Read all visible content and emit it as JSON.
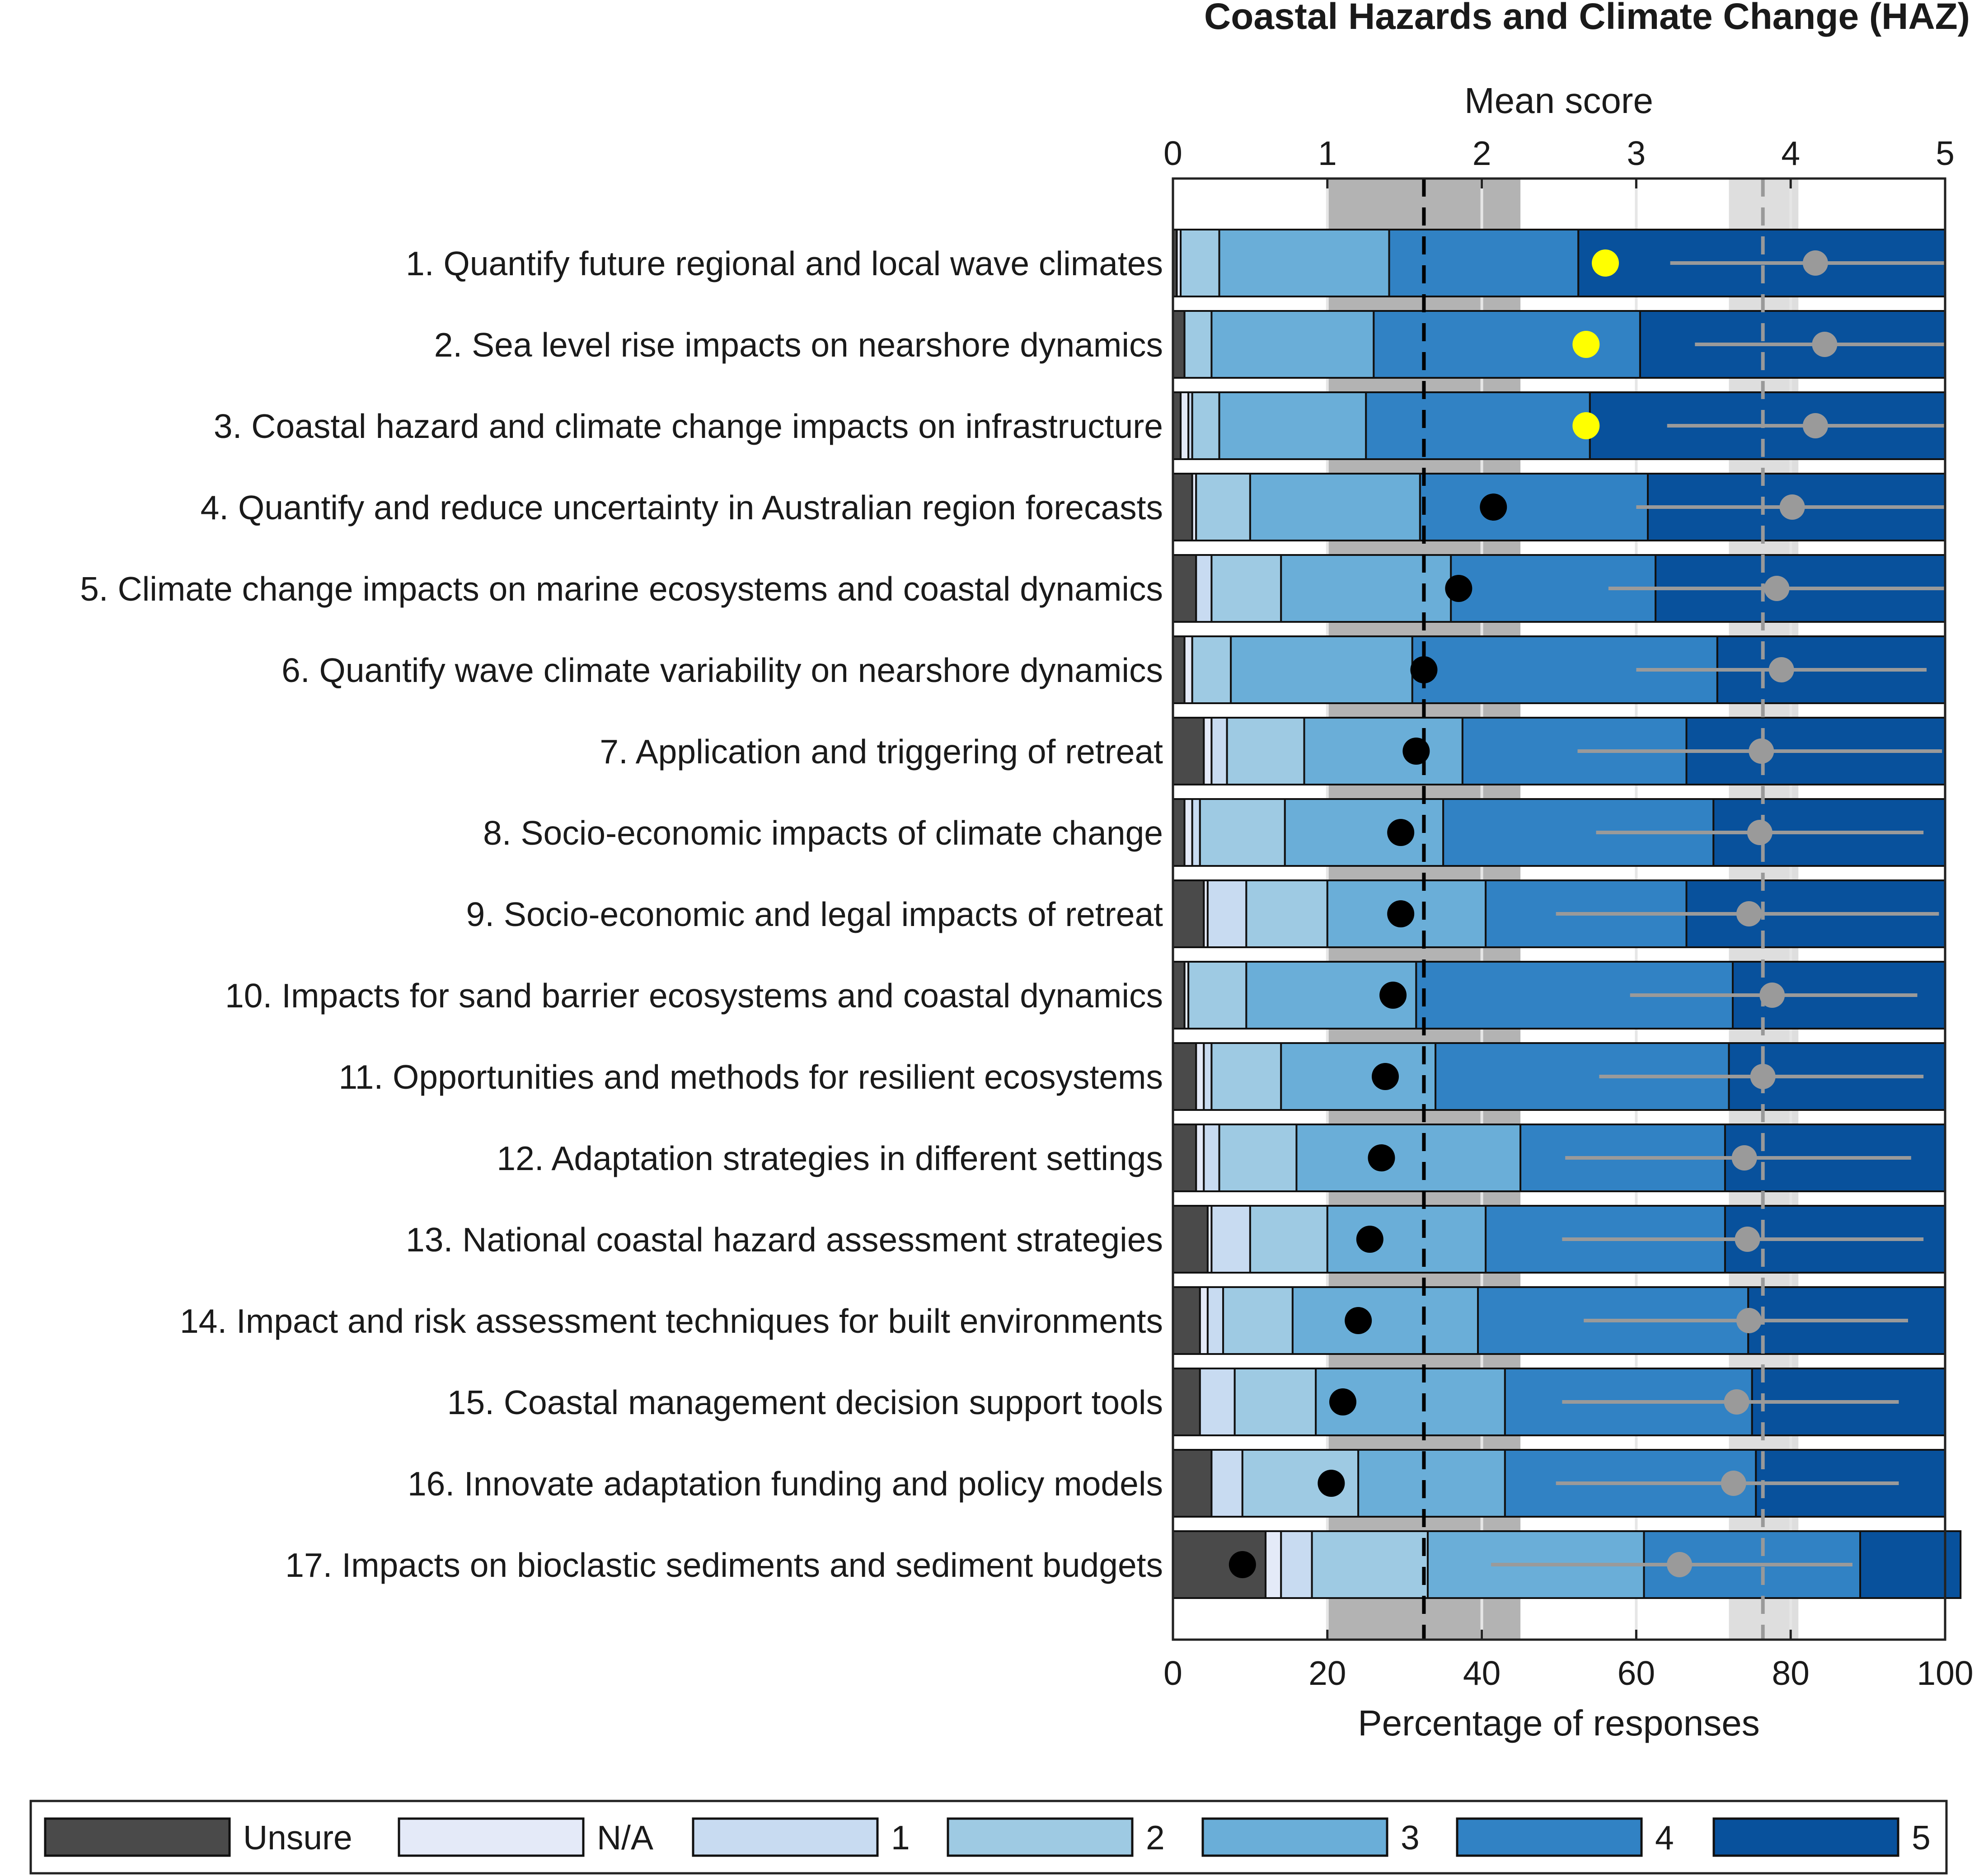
{
  "chart_data": {
    "type": "bar",
    "orientation": "horizontal-stacked",
    "title": "Coastal Hazards and Climate Change (HAZ)",
    "top_axis": {
      "label": "Mean score",
      "range": [
        0,
        5
      ],
      "ticks": [
        "0",
        "1",
        "2",
        "3",
        "4",
        "5"
      ]
    },
    "bottom_axis": {
      "label": "Percentage of responses",
      "range": [
        0,
        100
      ],
      "ticks": [
        "0",
        "20",
        "40",
        "60",
        "80",
        "100"
      ]
    },
    "categories": [
      "1. Quantify future regional and local wave climates",
      "2. Sea level rise impacts on nearshore dynamics",
      "3. Coastal hazard and climate change impacts on infrastructure",
      "4. Quantify and reduce uncertainty in Australian region forecasts",
      "5. Climate change impacts on marine ecosystems and coastal dynamics",
      "6. Quantify wave climate variability on nearshore dynamics",
      "7. Application and triggering of retreat",
      "8. Socio-economic impacts of climate change",
      "9. Socio-economic and legal impacts of retreat",
      "10. Impacts for sand barrier ecosystems and coastal dynamics",
      "11. Opportunities and methods for resilient ecosystems",
      "12. Adaptation strategies in different settings",
      "13. National coastal hazard assessment strategies",
      "14. Impact and risk assessment techniques for built environments",
      "15. Coastal management decision support tools",
      "16. Innovate adaptation funding and policy models",
      "17. Impacts on bioclastic sediments and sediment budgets"
    ],
    "series": [
      {
        "name": "Unsure",
        "color": "#4a4a4a",
        "values": [
          0.5,
          1.5,
          1.0,
          2.5,
          3.0,
          1.5,
          4.0,
          1.5,
          4.0,
          1.5,
          3.0,
          3.0,
          4.5,
          3.5,
          3.5,
          5.0,
          12.0
        ]
      },
      {
        "name": "N/A",
        "color": "#e4eaf8",
        "values": [
          0.5,
          0.0,
          1.0,
          0.5,
          0.0,
          1.0,
          1.0,
          1.0,
          0.5,
          0.5,
          1.0,
          1.0,
          0.5,
          1.0,
          0.0,
          0.0,
          2.0
        ]
      },
      {
        "name": "1",
        "color": "#c8dbf1",
        "values": [
          0.0,
          0.0,
          0.5,
          0.0,
          2.0,
          0.0,
          2.0,
          1.0,
          5.0,
          0.0,
          1.0,
          2.0,
          5.0,
          2.0,
          4.5,
          4.0,
          4.0
        ]
      },
      {
        "name": "2",
        "color": "#9ecae3",
        "values": [
          5.0,
          3.5,
          3.5,
          7.0,
          9.0,
          5.0,
          10.0,
          11.0,
          10.5,
          7.5,
          9.0,
          10.0,
          10.0,
          9.0,
          10.5,
          15.0,
          15.0
        ]
      },
      {
        "name": "3",
        "color": "#6aaed8",
        "values": [
          22.0,
          21.0,
          19.0,
          22.0,
          22.0,
          23.5,
          20.5,
          20.5,
          20.5,
          22.0,
          20.0,
          29.0,
          20.5,
          24.0,
          24.5,
          19.0,
          28.0
        ]
      },
      {
        "name": "4",
        "color": "#3182c4",
        "values": [
          24.5,
          34.5,
          29.0,
          29.5,
          26.5,
          39.5,
          29.0,
          35.0,
          26.0,
          41.0,
          38.0,
          26.5,
          31.0,
          35.0,
          32.0,
          32.5,
          28.0
        ]
      },
      {
        "name": "5",
        "color": "#08519c",
        "values": [
          47.5,
          39.5,
          46.0,
          38.5,
          37.5,
          29.5,
          33.5,
          30.0,
          33.5,
          27.5,
          28.0,
          28.5,
          28.5,
          25.5,
          25.0,
          24.5,
          13.0
        ]
      }
    ],
    "mean_scores": [
      4.16,
      4.22,
      4.16,
      4.01,
      3.91,
      3.94,
      3.81,
      3.8,
      3.73,
      3.88,
      3.82,
      3.7,
      3.72,
      3.73,
      3.65,
      3.63,
      3.28
    ],
    "mean_score_ranges": [
      [
        3.22,
        5.0
      ],
      [
        3.38,
        5.0
      ],
      [
        3.2,
        5.0
      ],
      [
        3.0,
        5.0
      ],
      [
        2.82,
        5.0
      ],
      [
        3.0,
        4.88
      ],
      [
        2.62,
        4.98
      ],
      [
        2.74,
        4.86
      ],
      [
        2.48,
        4.96
      ],
      [
        2.96,
        4.82
      ],
      [
        2.76,
        4.86
      ],
      [
        2.54,
        4.78
      ],
      [
        2.52,
        4.86
      ],
      [
        2.66,
        4.76
      ],
      [
        2.52,
        4.7
      ],
      [
        2.48,
        4.7
      ],
      [
        2.06,
        4.4
      ]
    ],
    "percentile_markers": [
      56.0,
      53.5,
      53.5,
      41.5,
      37.0,
      32.5,
      31.5,
      29.5,
      29.5,
      28.5,
      27.5,
      27.0,
      25.5,
      24.0,
      22.0,
      20.5,
      9.0
    ],
    "percentile_marker_colors": [
      "#ffff00",
      "#ffff00",
      "#ffff00",
      "#000000",
      "#000000",
      "#000000",
      "#000000",
      "#000000",
      "#000000",
      "#000000",
      "#000000",
      "#000000",
      "#000000",
      "#000000",
      "#000000",
      "#000000",
      "#000000"
    ],
    "reference_bands": {
      "dark_band_percent": [
        20,
        45
      ],
      "dark_line_percent": 32.5,
      "light_band_mean": [
        3.6,
        4.05
      ],
      "light_line_mean": 3.82
    },
    "legend": [
      "Unsure",
      "N/A",
      "1",
      "2",
      "3",
      "4",
      "5"
    ],
    "legend_placement": "bottom"
  }
}
